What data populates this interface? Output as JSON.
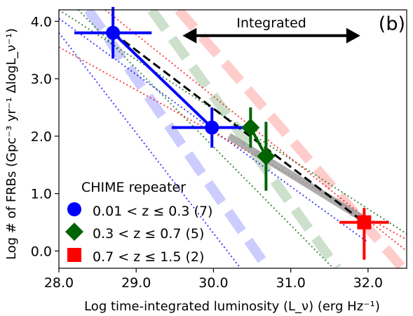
{
  "chart_data": {
    "type": "scatter",
    "panel_label": "(b)",
    "xlabel": "Log time-integrated luminosity (L_ν) (erg Hz⁻¹)",
    "ylabel": "Log # of FRBs (Gpc⁻³ yr⁻¹ ΔlogL_ν⁻¹)",
    "xlim": [
      28.0,
      32.5
    ],
    "ylim": [
      -0.3,
      4.2
    ],
    "xticks": [
      28.0,
      29.0,
      30.0,
      31.0,
      32.0
    ],
    "xtick_labels": [
      "28.0",
      "29.0",
      "30.0",
      "31.0",
      "32.0"
    ],
    "yticks": [
      0.0,
      1.0,
      2.0,
      3.0,
      4.0
    ],
    "ytick_labels": [
      "0.0",
      "1.0",
      "2.0",
      "3.0",
      "4.0"
    ],
    "grid": false,
    "legend": {
      "title": "CHIME repeater",
      "placement": "lower-left",
      "entries": [
        {
          "label": "0.01 < z ≤ 0.3 (7)",
          "marker": "circle",
          "color": "#0000ff"
        },
        {
          "label": "0.3 < z ≤ 0.7 (5)",
          "marker": "diamond",
          "color": "#006400"
        },
        {
          "label": "0.7 < z ≤ 1.5 (2)",
          "marker": "square",
          "color": "#ff0000"
        }
      ]
    },
    "annotation": {
      "text": "Integrated",
      "arrow_from": 29.6,
      "arrow_to": 31.9,
      "y": 3.75
    },
    "series": [
      {
        "marker": "circle",
        "color": "#0000ff",
        "points": [
          {
            "x": 28.7,
            "y": 3.8,
            "xerr": [
              0.5,
              0.5
            ],
            "yerr": [
              0.45,
              0.45
            ]
          },
          {
            "x": 29.98,
            "y": 2.15,
            "xerr": [
              0.52,
              0.52
            ],
            "yerr": [
              0.35,
              0.35
            ]
          }
        ]
      },
      {
        "marker": "diamond",
        "color": "#006400",
        "points": [
          {
            "x": 30.48,
            "y": 2.15,
            "xerr": [
              0.0,
              0.0
            ],
            "yerr": [
              0.35,
              0.35
            ]
          },
          {
            "x": 30.68,
            "y": 1.65,
            "xerr": [
              0.0,
              0.0
            ],
            "yerr": [
              0.6,
              0.6
            ]
          }
        ]
      },
      {
        "marker": "square",
        "color": "#ff0000",
        "points": [
          {
            "x": 31.95,
            "y": 0.5,
            "xerr": [
              0.32,
              0.32
            ],
            "yerr": [
              0.65,
              0.25
            ]
          }
        ]
      }
    ],
    "overall_fit": {
      "style": "dashed",
      "color": "#000000",
      "x": [
        28.7,
        31.95
      ],
      "y": [
        3.8,
        0.5
      ]
    },
    "gray_band": {
      "color": "#999999",
      "x": [
        30.2,
        31.95
      ],
      "y": [
        2.0,
        0.55
      ]
    },
    "model_lines": [
      {
        "color": "#0000ff",
        "alpha": 0.2,
        "style": "thick-dashed",
        "x": [
          28.38,
          30.7
        ],
        "y": [
          4.2,
          -0.3
        ]
      },
      {
        "color": "#006400",
        "alpha": 0.2,
        "style": "thick-dashed",
        "x": [
          29.2,
          31.6
        ],
        "y": [
          4.2,
          -0.3
        ]
      },
      {
        "color": "#ff0000",
        "alpha": 0.2,
        "style": "thick-dashed",
        "x": [
          29.55,
          32.45
        ],
        "y": [
          4.2,
          -0.3
        ]
      }
    ],
    "envelope_lines": [
      {
        "color": "#0000ff",
        "style": "dotted",
        "x": [
          28.0,
          30.35
        ],
        "y": [
          3.8,
          -0.3
        ]
      },
      {
        "color": "#0000ff",
        "style": "dotted",
        "x": [
          28.0,
          32.0
        ],
        "y": [
          4.05,
          0.15
        ]
      },
      {
        "color": "#006400",
        "style": "dotted",
        "x": [
          28.0,
          32.5
        ],
        "y": [
          4.2,
          0.3
        ]
      },
      {
        "color": "#006400",
        "style": "dotted",
        "x": [
          28.25,
          31.55
        ],
        "y": [
          4.2,
          -0.3
        ]
      },
      {
        "color": "#ff0000",
        "style": "dotted",
        "x": [
          28.6,
          32.5
        ],
        "y": [
          4.2,
          0.0
        ]
      },
      {
        "color": "#ff0000",
        "style": "dotted",
        "x": [
          28.0,
          32.5
        ],
        "y": [
          3.55,
          0.2
        ]
      }
    ]
  }
}
